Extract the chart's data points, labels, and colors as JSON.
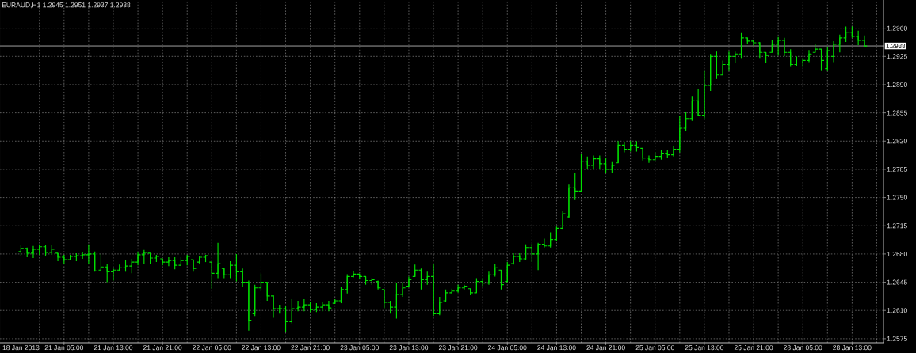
{
  "chart_data": {
    "type": "candlestick",
    "title": "EURAUD,H1 1.2945 1.2951 1.2937 1.2938",
    "categories": [
      "18 Jan 2013",
      null,
      null,
      null,
      null,
      null,
      null,
      "21 Jan 05:00",
      null,
      null,
      null,
      null,
      null,
      null,
      null,
      "21 Jan 13:00",
      null,
      null,
      null,
      null,
      null,
      null,
      null,
      "21 Jan 21:00",
      null,
      null,
      null,
      null,
      null,
      null,
      null,
      "22 Jan 05:00",
      null,
      null,
      null,
      null,
      null,
      null,
      null,
      "22 Jan 13:00",
      null,
      null,
      null,
      null,
      null,
      null,
      null,
      "22 Jan 21:00",
      null,
      null,
      null,
      null,
      null,
      null,
      null,
      "23 Jan 05:00",
      null,
      null,
      null,
      null,
      null,
      null,
      null,
      "23 Jan 13:00",
      null,
      null,
      null,
      null,
      null,
      null,
      null,
      "23 Jan 21:00",
      null,
      null,
      null,
      null,
      null,
      null,
      null,
      "24 Jan 05:00",
      null,
      null,
      null,
      null,
      null,
      null,
      null,
      "24 Jan 13:00",
      null,
      null,
      null,
      null,
      null,
      null,
      null,
      "24 Jan 21:00",
      null,
      null,
      null,
      null,
      null,
      null,
      null,
      "25 Jan 05:00",
      null,
      null,
      null,
      null,
      null,
      null,
      null,
      "25 Jan 13:00",
      null,
      null,
      null,
      null,
      null,
      null,
      null,
      "25 Jan 21:00",
      null,
      null,
      null,
      null,
      null,
      null,
      null,
      "28 Jan 05:00",
      null,
      null,
      null,
      null,
      null,
      null,
      null,
      "28 Jan 13:00",
      null,
      null
    ],
    "ohlc": [
      [
        1.2683,
        1.2691,
        1.2678,
        1.2687
      ],
      [
        1.2687,
        1.2688,
        1.2676,
        1.2681
      ],
      [
        1.2681,
        1.269,
        1.2675,
        1.2686
      ],
      [
        1.2686,
        1.2692,
        1.2679,
        1.2689
      ],
      [
        1.2689,
        1.2691,
        1.2678,
        1.2682
      ],
      [
        1.2682,
        1.2691,
        1.2679,
        1.2686
      ],
      [
        1.2681,
        1.2681,
        1.2671,
        1.2676
      ],
      [
        1.2676,
        1.2679,
        1.2668,
        1.2673
      ],
      [
        1.2673,
        1.2679,
        1.2673,
        1.2677
      ],
      [
        1.2677,
        1.2681,
        1.2671,
        1.2678
      ],
      [
        1.2678,
        1.2682,
        1.2674,
        1.2679
      ],
      [
        1.2679,
        1.2692,
        1.2668,
        1.268
      ],
      [
        1.268,
        1.2683,
        1.2658,
        1.2659
      ],
      [
        1.266,
        1.268,
        1.266,
        1.2664
      ],
      [
        1.2664,
        1.2668,
        1.2645,
        1.2658
      ],
      [
        1.2658,
        1.2662,
        1.2647,
        1.266
      ],
      [
        1.266,
        1.2667,
        1.2659,
        1.2663
      ],
      [
        1.2663,
        1.2673,
        1.2658,
        1.2665
      ],
      [
        1.2665,
        1.2674,
        1.2656,
        1.267
      ],
      [
        1.267,
        1.2682,
        1.2666,
        1.2679
      ],
      [
        1.2679,
        1.2685,
        1.2668,
        1.2682
      ],
      [
        1.2681,
        1.2681,
        1.2668,
        1.2675
      ],
      [
        1.2675,
        1.2679,
        1.267,
        1.2677
      ],
      [
        1.2674,
        1.2674,
        1.2666,
        1.267
      ],
      [
        1.267,
        1.2676,
        1.2665,
        1.2672
      ],
      [
        1.2672,
        1.2676,
        1.2661,
        1.2666
      ],
      [
        1.2666,
        1.2676,
        1.2665,
        1.2672
      ],
      [
        1.2672,
        1.2679,
        1.2666,
        1.2677
      ],
      [
        1.2673,
        1.2673,
        1.2658,
        1.2662
      ],
      [
        1.267,
        1.2678,
        1.2668,
        1.2676
      ],
      [
        1.2676,
        1.2679,
        1.267,
        1.2678
      ],
      [
        1.267,
        1.267,
        1.2637,
        1.2656
      ],
      [
        1.2656,
        1.2694,
        1.265,
        1.2668
      ],
      [
        1.2662,
        1.2662,
        1.265,
        1.2654
      ],
      [
        1.2654,
        1.2671,
        1.265,
        1.2666
      ],
      [
        1.2666,
        1.268,
        1.2646,
        1.2658
      ],
      [
        1.2658,
        1.2662,
        1.2639,
        1.2645
      ],
      [
        1.2645,
        1.2647,
        1.2585,
        1.2598
      ],
      [
        1.2606,
        1.2642,
        1.2603,
        1.2638
      ],
      [
        1.2638,
        1.2656,
        1.2634,
        1.2645
      ],
      [
        1.2645,
        1.2645,
        1.2622,
        1.2628
      ],
      [
        1.2628,
        1.2629,
        1.2601,
        1.2612
      ],
      [
        1.2612,
        1.2617,
        1.2606,
        1.2612
      ],
      [
        1.2612,
        1.2616,
        1.2583,
        1.2596
      ],
      [
        1.2596,
        1.2624,
        1.2594,
        1.2612
      ],
      [
        1.2612,
        1.2622,
        1.2609,
        1.2614
      ],
      [
        1.2614,
        1.2624,
        1.2609,
        1.2617
      ],
      [
        1.2617,
        1.262,
        1.2608,
        1.2611
      ],
      [
        1.2611,
        1.2619,
        1.2608,
        1.2614
      ],
      [
        1.2614,
        1.2621,
        1.2609,
        1.2617
      ],
      [
        1.2617,
        1.2622,
        1.2609,
        1.2613
      ],
      [
        1.2619,
        1.2624,
        1.2618,
        1.2622
      ],
      [
        1.2622,
        1.2639,
        1.2619,
        1.2636
      ],
      [
        1.2636,
        1.2655,
        1.2631,
        1.2652
      ],
      [
        1.2652,
        1.2659,
        1.2651,
        1.2655
      ],
      [
        1.2655,
        1.2655,
        1.2649,
        1.2652
      ],
      [
        1.2652,
        1.2652,
        1.2642,
        1.2647
      ],
      [
        1.2647,
        1.265,
        1.2642,
        1.2648
      ],
      [
        1.2646,
        1.2647,
        1.2636,
        1.2638
      ],
      [
        1.2636,
        1.2636,
        1.2613,
        1.262
      ],
      [
        1.262,
        1.2622,
        1.2606,
        1.2614
      ],
      [
        1.2614,
        1.2644,
        1.26,
        1.263
      ],
      [
        1.263,
        1.2645,
        1.2627,
        1.2638
      ],
      [
        1.264,
        1.2652,
        1.2639,
        1.2648
      ],
      [
        1.2652,
        1.2667,
        1.2652,
        1.266
      ],
      [
        1.266,
        1.2662,
        1.2636,
        1.2648
      ],
      [
        1.2648,
        1.2658,
        1.2642,
        1.2652
      ],
      [
        1.2652,
        1.2668,
        1.2603,
        1.2606
      ],
      [
        1.2606,
        1.2627,
        1.2604,
        1.262
      ],
      [
        1.2622,
        1.2636,
        1.2621,
        1.2632
      ],
      [
        1.2632,
        1.2637,
        1.2631,
        1.2634
      ],
      [
        1.2634,
        1.2642,
        1.2632,
        1.2638
      ],
      [
        1.2638,
        1.2642,
        1.2636,
        1.264
      ],
      [
        1.2637,
        1.2637,
        1.2629,
        1.2632
      ],
      [
        1.2632,
        1.265,
        1.2632,
        1.2646
      ],
      [
        1.2646,
        1.265,
        1.264,
        1.2644
      ],
      [
        1.2644,
        1.2658,
        1.2642,
        1.2654
      ],
      [
        1.2654,
        1.2668,
        1.2652,
        1.2663
      ],
      [
        1.266,
        1.266,
        1.2636,
        1.2642
      ],
      [
        1.2646,
        1.267,
        1.2645,
        1.2666
      ],
      [
        1.2668,
        1.2681,
        1.2667,
        1.2677
      ],
      [
        1.2677,
        1.2681,
        1.267,
        1.2674
      ],
      [
        1.2674,
        1.2692,
        1.2673,
        1.2688
      ],
      [
        1.2688,
        1.2693,
        1.267,
        1.268
      ],
      [
        1.268,
        1.2694,
        1.266,
        1.2692
      ],
      [
        1.2692,
        1.2699,
        1.2688,
        1.269
      ],
      [
        1.269,
        1.2707,
        1.2688,
        1.2698
      ],
      [
        1.2698,
        1.2714,
        1.2696,
        1.2712
      ],
      [
        1.2712,
        1.2734,
        1.2711,
        1.273
      ],
      [
        1.2726,
        1.2766,
        1.2724,
        1.2762
      ],
      [
        1.2762,
        1.2781,
        1.2747,
        1.2758
      ],
      [
        1.2758,
        1.2804,
        1.2758,
        1.2795
      ],
      [
        1.2795,
        1.2801,
        1.2785,
        1.279
      ],
      [
        1.279,
        1.2802,
        1.2786,
        1.2798
      ],
      [
        1.2798,
        1.2802,
        1.2786,
        1.2792
      ],
      [
        1.2792,
        1.2799,
        1.2781,
        1.2785
      ],
      [
        1.2785,
        1.2794,
        1.2781,
        1.279
      ],
      [
        1.2793,
        1.282,
        1.2793,
        1.2815
      ],
      [
        1.2815,
        1.2819,
        1.2806,
        1.281
      ],
      [
        1.281,
        1.282,
        1.2807,
        1.2815
      ],
      [
        1.2815,
        1.282,
        1.2807,
        1.2812
      ],
      [
        1.2811,
        1.2811,
        1.2796,
        1.2799
      ],
      [
        1.2799,
        1.2802,
        1.2793,
        1.2797
      ],
      [
        1.2797,
        1.2806,
        1.2796,
        1.2801
      ],
      [
        1.2801,
        1.2809,
        1.2797,
        1.2805
      ],
      [
        1.2805,
        1.2809,
        1.2799,
        1.2803
      ],
      [
        1.2803,
        1.2814,
        1.2801,
        1.281
      ],
      [
        1.281,
        1.2851,
        1.2806,
        1.2836
      ],
      [
        1.2836,
        1.2856,
        1.2833,
        1.2848
      ],
      [
        1.2848,
        1.2876,
        1.2845,
        1.287
      ],
      [
        1.287,
        1.2884,
        1.2851,
        1.2852
      ],
      [
        1.2852,
        1.2907,
        1.2848,
        1.2889
      ],
      [
        1.2889,
        1.2928,
        1.2882,
        1.2925
      ],
      [
        1.2925,
        1.2931,
        1.2897,
        1.2902
      ],
      [
        1.2902,
        1.292,
        1.2902,
        1.2915
      ],
      [
        1.2915,
        1.2931,
        1.2907,
        1.2925
      ],
      [
        1.2925,
        1.2931,
        1.2917,
        1.2928
      ],
      [
        1.2928,
        1.2954,
        1.2923,
        1.2948
      ],
      [
        1.2948,
        1.2948,
        1.2941,
        1.2944
      ],
      [
        1.2944,
        1.2946,
        1.2938,
        1.2942
      ],
      [
        1.2942,
        1.2943,
        1.2923,
        1.293
      ],
      [
        1.293,
        1.293,
        1.2917,
        1.2926
      ],
      [
        1.293,
        1.2945,
        1.293,
        1.294
      ],
      [
        1.294,
        1.2949,
        1.2926,
        1.2945
      ],
      [
        1.2945,
        1.2948,
        1.2925,
        1.293
      ],
      [
        1.293,
        1.2934,
        1.2912,
        1.2915
      ],
      [
        1.2915,
        1.2925,
        1.2913,
        1.2917
      ],
      [
        1.2917,
        1.2923,
        1.2912,
        1.292
      ],
      [
        1.292,
        1.2933,
        1.2918,
        1.2928
      ],
      [
        1.293,
        1.2941,
        1.293,
        1.2934
      ],
      [
        1.2934,
        1.2934,
        1.2907,
        1.292
      ],
      [
        1.291,
        1.2936,
        1.2907,
        1.2932
      ],
      [
        1.2925,
        1.2944,
        1.2918,
        1.294
      ],
      [
        1.294,
        1.2952,
        1.293,
        1.2948
      ],
      [
        1.2948,
        1.2962,
        1.2943,
        1.2955
      ],
      [
        1.2955,
        1.2962,
        1.2948,
        1.295
      ],
      [
        1.295,
        1.2957,
        1.2939,
        1.2945
      ],
      [
        1.2945,
        1.2951,
        1.2937,
        1.2938
      ]
    ],
    "color": "#00e000",
    "ylim": [
      1.257,
      1.2995
    ],
    "yticks": [
      {
        "value": 1.2575,
        "label": "1.2575"
      },
      {
        "value": 1.261,
        "label": "1.2610"
      },
      {
        "value": 1.2645,
        "label": "1.2645"
      },
      {
        "value": 1.268,
        "label": "1.2680"
      },
      {
        "value": 1.2715,
        "label": "1.2715"
      },
      {
        "value": 1.275,
        "label": "1.2750"
      },
      {
        "value": 1.2785,
        "label": "1.2785"
      },
      {
        "value": 1.282,
        "label": "1.2820"
      },
      {
        "value": 1.2855,
        "label": "1.2855"
      },
      {
        "value": 1.289,
        "label": "1.2890"
      },
      {
        "value": 1.2925,
        "label": "1.2925"
      },
      {
        "value": 1.296,
        "label": "1.2960"
      }
    ],
    "grid": true,
    "ref_lines": [
      {
        "axis": "y",
        "value": 1.2938,
        "label": "1.2938",
        "color": "#c8c8c8"
      }
    ]
  }
}
